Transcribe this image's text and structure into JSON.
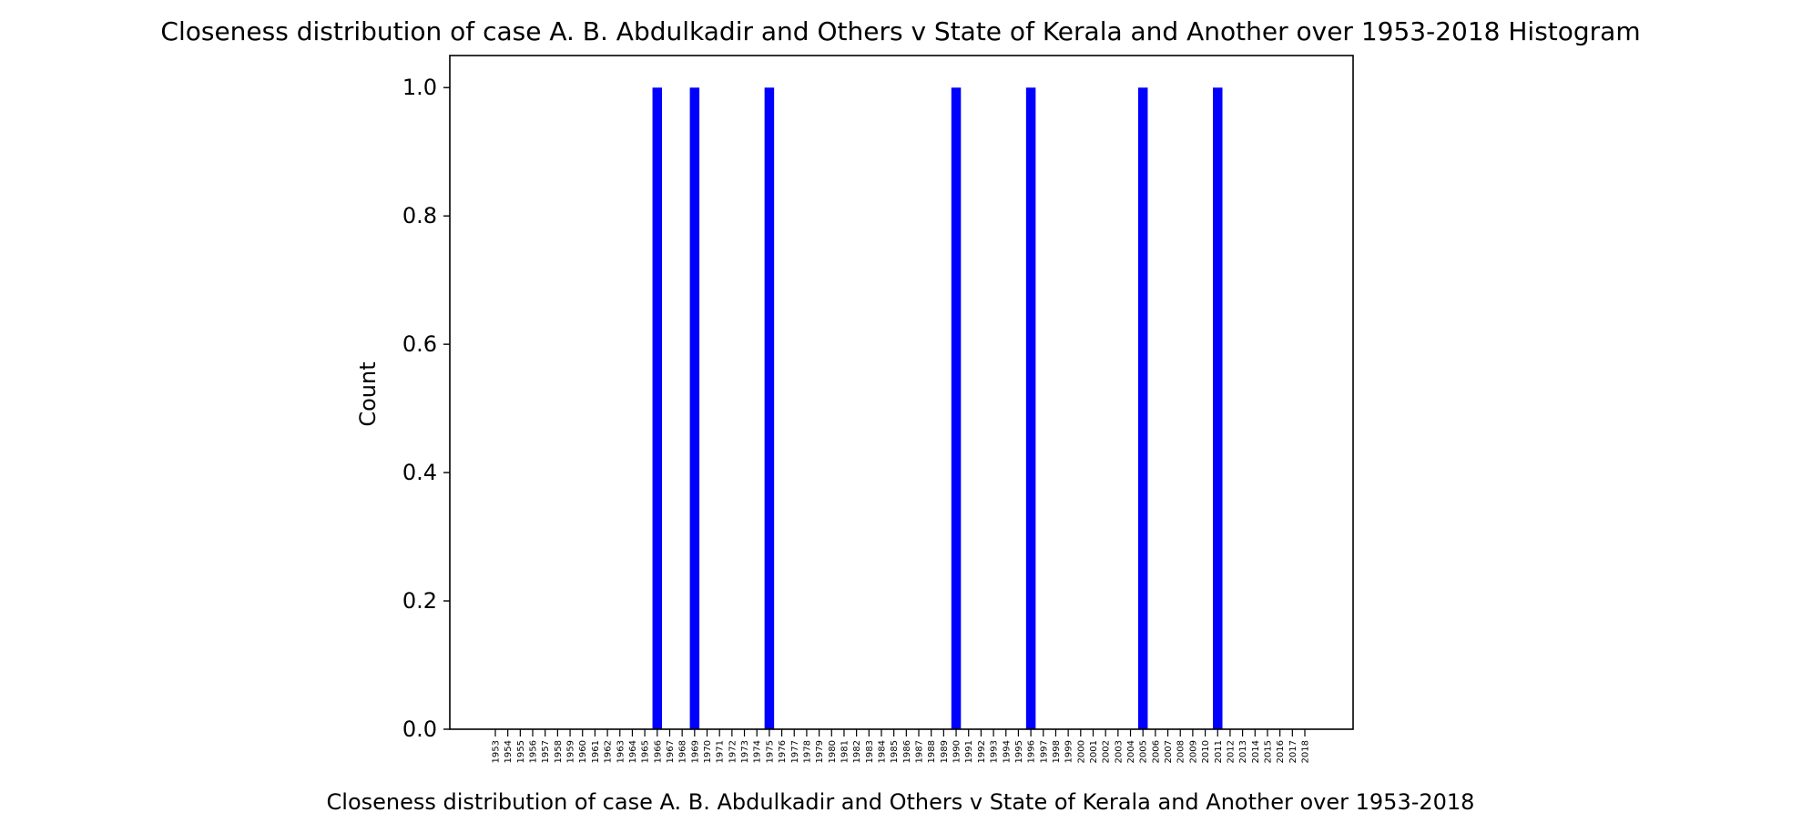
{
  "chart_data": {
    "type": "bar",
    "title": "Closeness distribution of case A. B. Abdulkadir and Others v State of Kerala and Another over 1953-2018 Histogram",
    "xlabel": "Closeness distribution of case A. B. Abdulkadir and Others v State of Kerala and Another over 1953-2018",
    "ylabel": "Count",
    "ylim": [
      0,
      1.05
    ],
    "yticks": [
      "0.0",
      "0.2",
      "0.4",
      "0.6",
      "0.8",
      "1.0"
    ],
    "bar_color": "#0000ff",
    "grid": false,
    "categories": [
      "1953",
      "1954",
      "1955",
      "1956",
      "1957",
      "1958",
      "1959",
      "1960",
      "1961",
      "1962",
      "1963",
      "1964",
      "1965",
      "1966",
      "1967",
      "1968",
      "1969",
      "1970",
      "1971",
      "1972",
      "1973",
      "1974",
      "1975",
      "1976",
      "1977",
      "1978",
      "1979",
      "1980",
      "1981",
      "1982",
      "1983",
      "1984",
      "1985",
      "1986",
      "1987",
      "1988",
      "1989",
      "1990",
      "1991",
      "1992",
      "1993",
      "1994",
      "1995",
      "1996",
      "1997",
      "1998",
      "1999",
      "2000",
      "2001",
      "2002",
      "2003",
      "2004",
      "2005",
      "2006",
      "2007",
      "2008",
      "2009",
      "2010",
      "2011",
      "2012",
      "2013",
      "2014",
      "2015",
      "2016",
      "2017",
      "2018"
    ],
    "values": [
      0,
      0,
      0,
      0,
      0,
      0,
      0,
      0,
      0,
      0,
      0,
      0,
      0,
      1,
      0,
      0,
      1,
      0,
      0,
      0,
      0,
      0,
      1,
      0,
      0,
      0,
      0,
      0,
      0,
      0,
      0,
      0,
      0,
      0,
      0,
      0,
      0,
      1,
      0,
      0,
      0,
      0,
      0,
      1,
      0,
      0,
      0,
      0,
      0,
      0,
      0,
      0,
      1,
      0,
      0,
      0,
      0,
      0,
      1,
      0,
      0,
      0,
      0,
      0,
      0,
      0
    ]
  }
}
